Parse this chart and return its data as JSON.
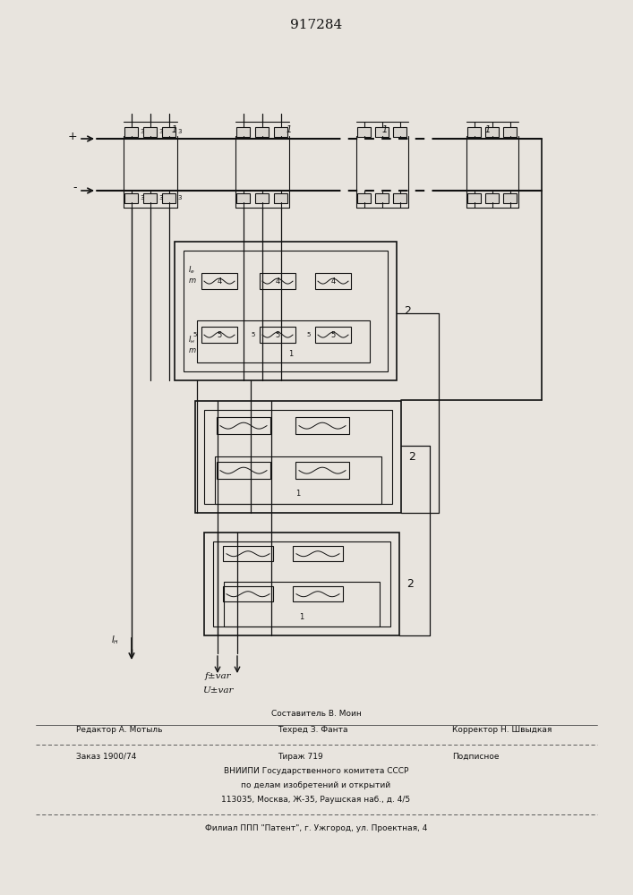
{
  "patent_number": "917284",
  "bg": "#e8e4de",
  "lc": "#111111",
  "title": "917284",
  "footer": {
    "line1_center": "Составитель В. Моин",
    "line2_left": "Редактор А. Мотыль",
    "line2_center": "Техред З. Фанта",
    "line2_right": "Корректор Н. Швыдкая",
    "line3_left": "Заказ 1900/74",
    "line3_center": "Тираж 719",
    "line3_right": "Подписное",
    "line4": "ВНИИПИ Государственного комитета СССР",
    "line5": "по делам изобретений и открытий",
    "line6": "113035, Москва, Ж-35, Раушская наб., д. 4/5",
    "line7": "Филиал ППП \"Патент\", г. Ужгород, ул. Проектная, 4"
  }
}
